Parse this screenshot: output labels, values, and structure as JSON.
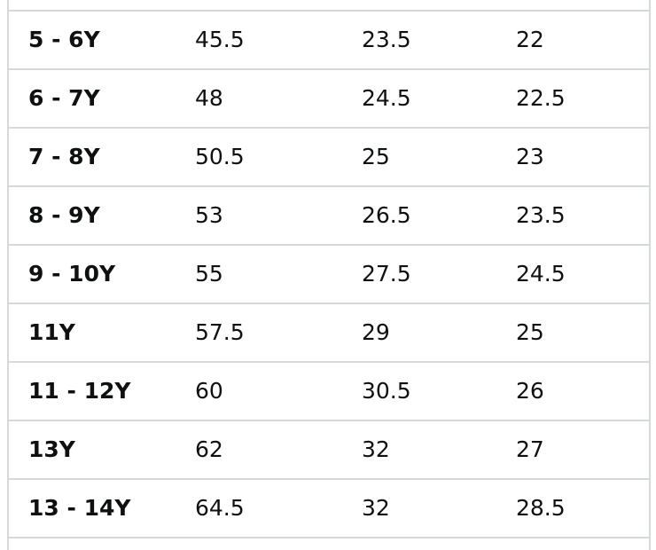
{
  "table": {
    "rows": [
      [
        "5 - 6Y",
        "45.5",
        "23.5",
        "22"
      ],
      [
        "6 - 7Y",
        "48",
        "24.5",
        "22.5"
      ],
      [
        "7 - 8Y",
        "50.5",
        "25",
        "23"
      ],
      [
        "8 - 9Y",
        "53",
        "26.5",
        "23.5"
      ],
      [
        "9 - 10Y",
        "55",
        "27.5",
        "24.5"
      ],
      [
        "11Y",
        "57.5",
        "29",
        "25"
      ],
      [
        "11 - 12Y",
        "60",
        "30.5",
        "26"
      ],
      [
        "13Y",
        "62",
        "32",
        "27"
      ],
      [
        "13 - 14Y",
        "64.5",
        "32",
        "28.5"
      ]
    ]
  }
}
